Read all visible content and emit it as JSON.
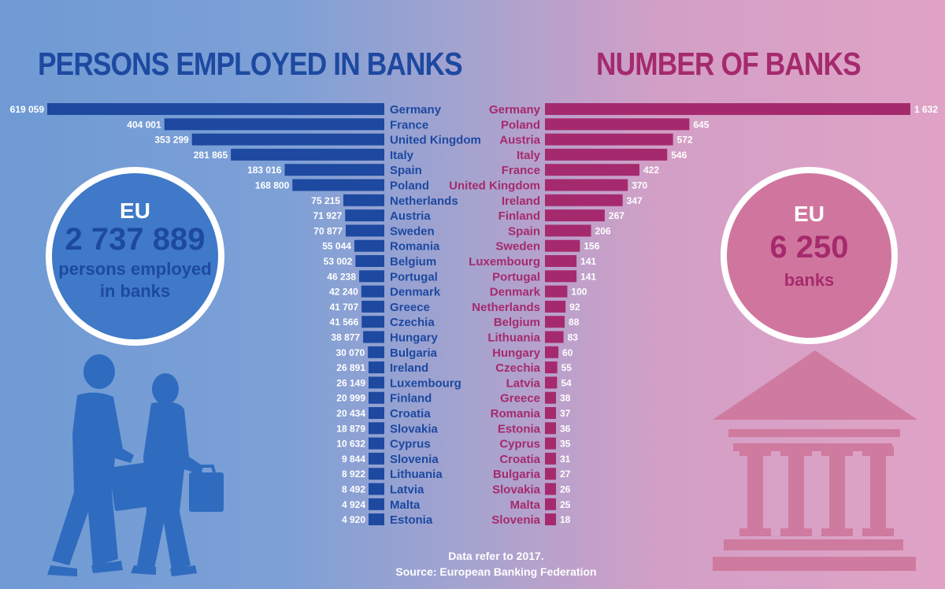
{
  "titles": {
    "left": "PERSONS EMPLOYED IN BANKS",
    "right": "NUMBER OF BANKS"
  },
  "eu_left": {
    "label": "EU",
    "value": "2 737 889",
    "sub1": "persons employed",
    "sub2": "in banks"
  },
  "eu_right": {
    "label": "EU",
    "value": "6 250",
    "sub": "banks"
  },
  "footnote": {
    "line1": "Data refer to 2017.",
    "line2": "Source: European Banking Federation"
  },
  "colors": {
    "employed_bar": "#1d49a0",
    "banks_bar": "#a52a6d",
    "people_icon": "#2f6cbf",
    "bank_icon": "#d0769e"
  },
  "chart_data": [
    {
      "type": "bar",
      "orientation": "horizontal",
      "direction": "right-to-left",
      "title": "PERSONS EMPLOYED IN BANKS",
      "categories": [
        "Germany",
        "France",
        "United Kingdom",
        "Italy",
        "Spain",
        "Poland",
        "Netherlands",
        "Austria",
        "Sweden",
        "Romania",
        "Belgium",
        "Portugal",
        "Denmark",
        "Greece",
        "Czechia",
        "Hungary",
        "Bulgaria",
        "Ireland",
        "Luxembourg",
        "Finland",
        "Croatia",
        "Slovakia",
        "Cyprus",
        "Slovenia",
        "Lithuania",
        "Latvia",
        "Malta",
        "Estonia"
      ],
      "values": [
        619059,
        404001,
        353299,
        281865,
        183016,
        168800,
        75215,
        71927,
        70877,
        55044,
        53002,
        46238,
        42240,
        41707,
        41566,
        38877,
        30070,
        26891,
        26149,
        20999,
        20434,
        18879,
        10632,
        9844,
        8922,
        8492,
        4924,
        4920
      ],
      "value_labels": [
        "619 059",
        "404 001",
        "353 299",
        "281 865",
        "183 016",
        "168 800",
        "75 215",
        "71 927",
        "70 877",
        "55 044",
        "53 002",
        "46 238",
        "42 240",
        "41 707",
        "41 566",
        "38 877",
        "30 070",
        "26 891",
        "26 149",
        "20 999",
        "20 434",
        "18 879",
        "10 632",
        "9 844",
        "8 922",
        "8 492",
        "4 924",
        "4 920"
      ]
    },
    {
      "type": "bar",
      "orientation": "horizontal",
      "direction": "left-to-right",
      "title": "NUMBER OF BANKS",
      "categories": [
        "Germany",
        "Poland",
        "Austria",
        "Italy",
        "France",
        "United Kingdom",
        "Ireland",
        "Finland",
        "Spain",
        "Sweden",
        "Luxembourg",
        "Portugal",
        "Denmark",
        "Netherlands",
        "Belgium",
        "Lithuania",
        "Hungary",
        "Czechia",
        "Latvia",
        "Greece",
        "Romania",
        "Estonia",
        "Cyprus",
        "Croatia",
        "Bulgaria",
        "Slovakia",
        "Malta",
        "Slovenia"
      ],
      "values": [
        1632,
        645,
        572,
        546,
        422,
        370,
        347,
        267,
        206,
        156,
        141,
        141,
        100,
        92,
        88,
        83,
        60,
        55,
        54,
        38,
        37,
        36,
        35,
        31,
        27,
        26,
        25,
        18
      ],
      "value_labels": [
        "1 632",
        "645",
        "572",
        "546",
        "422",
        "370",
        "347",
        "267",
        "206",
        "156",
        "141",
        "141",
        "100",
        "92",
        "88",
        "83",
        "60",
        "55",
        "54",
        "38",
        "37",
        "36",
        "35",
        "31",
        "27",
        "26",
        "25",
        "18"
      ]
    }
  ]
}
